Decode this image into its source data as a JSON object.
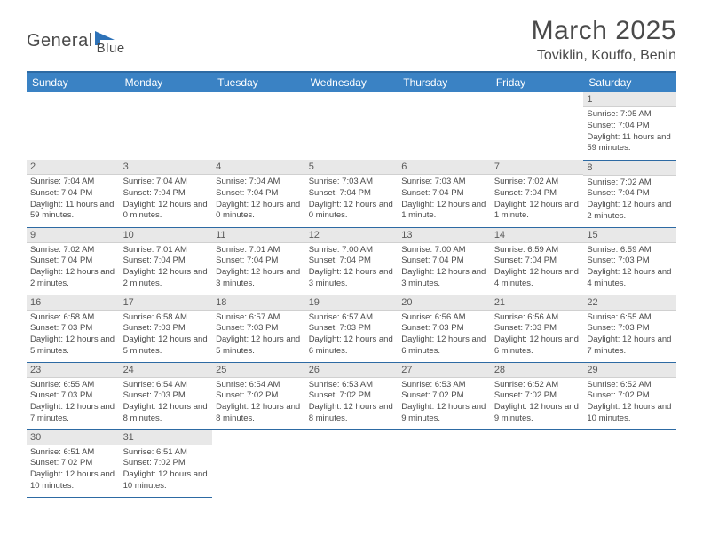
{
  "logo": {
    "text1": "General",
    "text2": "Blue"
  },
  "title": "March 2025",
  "location": "Toviklin, Kouffo, Benin",
  "colors": {
    "header_bg": "#3a82c4",
    "header_border": "#2d6aa3",
    "daynum_bg": "#e8e8e8",
    "text": "#4a4a4a"
  },
  "weekdays": [
    "Sunday",
    "Monday",
    "Tuesday",
    "Wednesday",
    "Thursday",
    "Friday",
    "Saturday"
  ],
  "weeks": [
    [
      null,
      null,
      null,
      null,
      null,
      null,
      {
        "n": "1",
        "sr": "7:05 AM",
        "ss": "7:04 PM",
        "dl": "11 hours and 59 minutes."
      }
    ],
    [
      {
        "n": "2",
        "sr": "7:04 AM",
        "ss": "7:04 PM",
        "dl": "11 hours and 59 minutes."
      },
      {
        "n": "3",
        "sr": "7:04 AM",
        "ss": "7:04 PM",
        "dl": "12 hours and 0 minutes."
      },
      {
        "n": "4",
        "sr": "7:04 AM",
        "ss": "7:04 PM",
        "dl": "12 hours and 0 minutes."
      },
      {
        "n": "5",
        "sr": "7:03 AM",
        "ss": "7:04 PM",
        "dl": "12 hours and 0 minutes."
      },
      {
        "n": "6",
        "sr": "7:03 AM",
        "ss": "7:04 PM",
        "dl": "12 hours and 1 minute."
      },
      {
        "n": "7",
        "sr": "7:02 AM",
        "ss": "7:04 PM",
        "dl": "12 hours and 1 minute."
      },
      {
        "n": "8",
        "sr": "7:02 AM",
        "ss": "7:04 PM",
        "dl": "12 hours and 2 minutes."
      }
    ],
    [
      {
        "n": "9",
        "sr": "7:02 AM",
        "ss": "7:04 PM",
        "dl": "12 hours and 2 minutes."
      },
      {
        "n": "10",
        "sr": "7:01 AM",
        "ss": "7:04 PM",
        "dl": "12 hours and 2 minutes."
      },
      {
        "n": "11",
        "sr": "7:01 AM",
        "ss": "7:04 PM",
        "dl": "12 hours and 3 minutes."
      },
      {
        "n": "12",
        "sr": "7:00 AM",
        "ss": "7:04 PM",
        "dl": "12 hours and 3 minutes."
      },
      {
        "n": "13",
        "sr": "7:00 AM",
        "ss": "7:04 PM",
        "dl": "12 hours and 3 minutes."
      },
      {
        "n": "14",
        "sr": "6:59 AM",
        "ss": "7:04 PM",
        "dl": "12 hours and 4 minutes."
      },
      {
        "n": "15",
        "sr": "6:59 AM",
        "ss": "7:03 PM",
        "dl": "12 hours and 4 minutes."
      }
    ],
    [
      {
        "n": "16",
        "sr": "6:58 AM",
        "ss": "7:03 PM",
        "dl": "12 hours and 5 minutes."
      },
      {
        "n": "17",
        "sr": "6:58 AM",
        "ss": "7:03 PM",
        "dl": "12 hours and 5 minutes."
      },
      {
        "n": "18",
        "sr": "6:57 AM",
        "ss": "7:03 PM",
        "dl": "12 hours and 5 minutes."
      },
      {
        "n": "19",
        "sr": "6:57 AM",
        "ss": "7:03 PM",
        "dl": "12 hours and 6 minutes."
      },
      {
        "n": "20",
        "sr": "6:56 AM",
        "ss": "7:03 PM",
        "dl": "12 hours and 6 minutes."
      },
      {
        "n": "21",
        "sr": "6:56 AM",
        "ss": "7:03 PM",
        "dl": "12 hours and 6 minutes."
      },
      {
        "n": "22",
        "sr": "6:55 AM",
        "ss": "7:03 PM",
        "dl": "12 hours and 7 minutes."
      }
    ],
    [
      {
        "n": "23",
        "sr": "6:55 AM",
        "ss": "7:03 PM",
        "dl": "12 hours and 7 minutes."
      },
      {
        "n": "24",
        "sr": "6:54 AM",
        "ss": "7:03 PM",
        "dl": "12 hours and 8 minutes."
      },
      {
        "n": "25",
        "sr": "6:54 AM",
        "ss": "7:02 PM",
        "dl": "12 hours and 8 minutes."
      },
      {
        "n": "26",
        "sr": "6:53 AM",
        "ss": "7:02 PM",
        "dl": "12 hours and 8 minutes."
      },
      {
        "n": "27",
        "sr": "6:53 AM",
        "ss": "7:02 PM",
        "dl": "12 hours and 9 minutes."
      },
      {
        "n": "28",
        "sr": "6:52 AM",
        "ss": "7:02 PM",
        "dl": "12 hours and 9 minutes."
      },
      {
        "n": "29",
        "sr": "6:52 AM",
        "ss": "7:02 PM",
        "dl": "12 hours and 10 minutes."
      }
    ],
    [
      {
        "n": "30",
        "sr": "6:51 AM",
        "ss": "7:02 PM",
        "dl": "12 hours and 10 minutes."
      },
      {
        "n": "31",
        "sr": "6:51 AM",
        "ss": "7:02 PM",
        "dl": "12 hours and 10 minutes."
      },
      null,
      null,
      null,
      null,
      null
    ]
  ],
  "labels": {
    "sunrise": "Sunrise: ",
    "sunset": "Sunset: ",
    "daylight": "Daylight: "
  }
}
